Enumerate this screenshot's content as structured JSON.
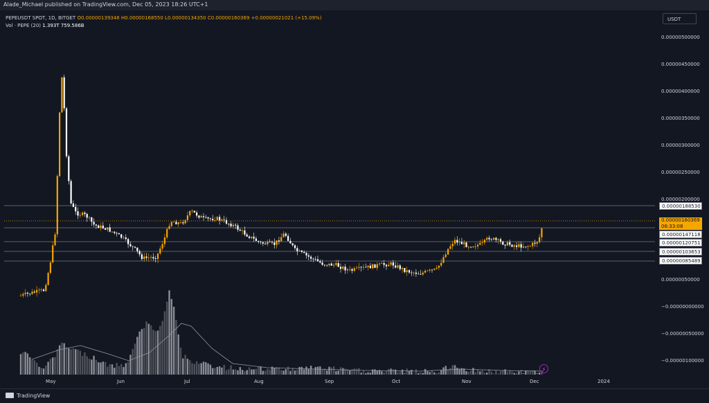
{
  "header": {
    "published": "Alade_Michael published on TradingView.com, Dec 05, 2023 18:26 UTC+1"
  },
  "legend": {
    "symbol": "PEPEUSDT SPOT, 1D, BITGET",
    "open": "O0.00000139348",
    "high": "H0.00000168550",
    "low": "L0.00000134350",
    "close": "C0.00000160369",
    "change": "+0.00000021021 (+15.09%)",
    "volume_label": "Vol · PEPE (20)",
    "volume_value": "1.393T",
    "volume_ma": "759.586B"
  },
  "toolbar": {
    "currency": "USDT"
  },
  "price_axis": {
    "labels": [
      "0.00000500000",
      "0.00000450000",
      "0.00000400000",
      "0.00000350000",
      "0.00000300000",
      "0.00000250000",
      "0.00000200000",
      "0.00000050000",
      "−0.00000000000",
      "−0.00000050000",
      "−0.00000100000"
    ]
  },
  "price_tags": {
    "level_1": "0.00000188530",
    "current": "0.00000160369",
    "countdown": "06:33:08",
    "level_2": "0.00000147118",
    "level_3": "0.00000120751",
    "level_4": "0.00000103653",
    "level_5": "0.00000085489"
  },
  "time_axis": {
    "labels": [
      "May",
      "Jun",
      "Jul",
      "Aug",
      "Sep",
      "Oct",
      "Nov",
      "Dec",
      "2024"
    ]
  },
  "footer": {
    "brand": "TradingView"
  },
  "colors": {
    "up": "#f7a600",
    "down": "#ffffff",
    "background": "#131722",
    "level_line": "#787b86"
  }
}
